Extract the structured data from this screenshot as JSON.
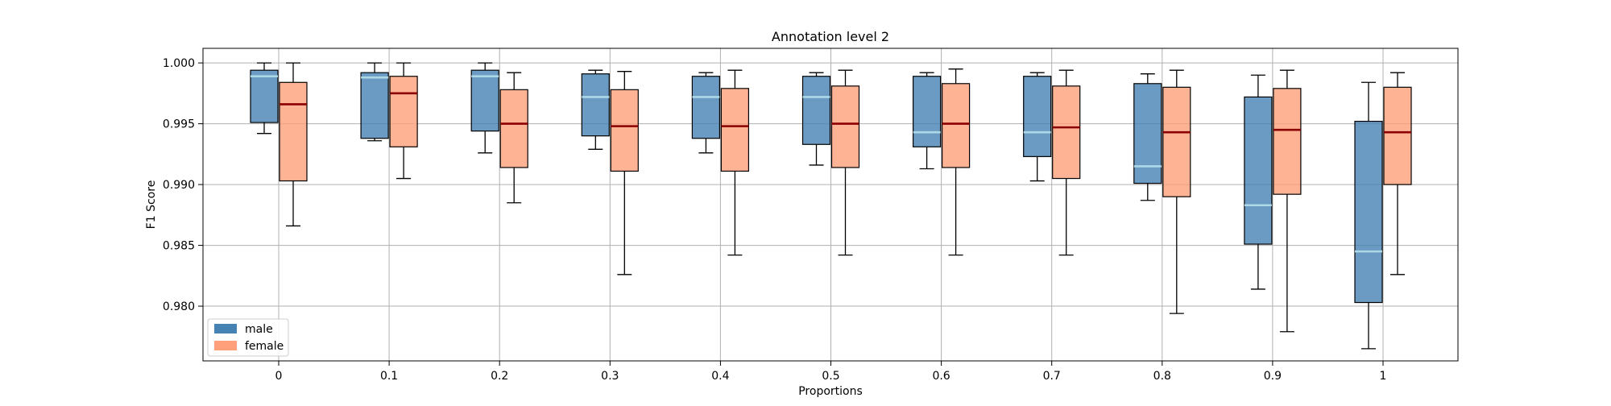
{
  "chart_data": {
    "type": "box",
    "title": "Annotation level 2",
    "xlabel": "Proportions",
    "ylabel": "F1 Score",
    "categories": [
      "0",
      "0.1",
      "0.2",
      "0.3",
      "0.4",
      "0.5",
      "0.6",
      "0.7",
      "0.8",
      "0.9",
      "1"
    ],
    "ylim": [
      0.9755,
      1.0012
    ],
    "yticks": [
      0.98,
      0.985,
      0.99,
      0.995,
      1.0
    ],
    "ytick_labels": [
      "0.980",
      "0.985",
      "0.990",
      "0.995",
      "1.000"
    ],
    "grid": true,
    "legend_position": "lower-left",
    "series": [
      {
        "name": "male",
        "color": "#4682b4",
        "median_color": "#add8e6",
        "boxes": [
          {
            "whisker_low": 0.9942,
            "q1": 0.9951,
            "median": 0.9989,
            "q3": 0.9994,
            "whisker_high": 1.0
          },
          {
            "whisker_low": 0.9936,
            "q1": 0.9938,
            "median": 0.9988,
            "q3": 0.9992,
            "whisker_high": 1.0
          },
          {
            "whisker_low": 0.9926,
            "q1": 0.9944,
            "median": 0.9989,
            "q3": 0.9994,
            "whisker_high": 1.0
          },
          {
            "whisker_low": 0.9929,
            "q1": 0.994,
            "median": 0.9972,
            "q3": 0.9991,
            "whisker_high": 0.9994
          },
          {
            "whisker_low": 0.9926,
            "q1": 0.9938,
            "median": 0.9972,
            "q3": 0.9989,
            "whisker_high": 0.9992
          },
          {
            "whisker_low": 0.9916,
            "q1": 0.9933,
            "median": 0.9972,
            "q3": 0.9989,
            "whisker_high": 0.9992
          },
          {
            "whisker_low": 0.9913,
            "q1": 0.9931,
            "median": 0.9943,
            "q3": 0.9989,
            "whisker_high": 0.9992
          },
          {
            "whisker_low": 0.9903,
            "q1": 0.9923,
            "median": 0.9943,
            "q3": 0.9989,
            "whisker_high": 0.9992
          },
          {
            "whisker_low": 0.9887,
            "q1": 0.9901,
            "median": 0.9915,
            "q3": 0.9983,
            "whisker_high": 0.9991
          },
          {
            "whisker_low": 0.9814,
            "q1": 0.9851,
            "median": 0.9883,
            "q3": 0.9972,
            "whisker_high": 0.999
          },
          {
            "whisker_low": 0.9765,
            "q1": 0.9803,
            "median": 0.9845,
            "q3": 0.9952,
            "whisker_high": 0.9984
          }
        ]
      },
      {
        "name": "female",
        "color": "#ffa07a",
        "median_color": "#8b0000",
        "boxes": [
          {
            "whisker_low": 0.9866,
            "q1": 0.9903,
            "median": 0.9966,
            "q3": 0.9984,
            "whisker_high": 1.0
          },
          {
            "whisker_low": 0.9905,
            "q1": 0.9931,
            "median": 0.9975,
            "q3": 0.9989,
            "whisker_high": 1.0
          },
          {
            "whisker_low": 0.9885,
            "q1": 0.9914,
            "median": 0.995,
            "q3": 0.9978,
            "whisker_high": 0.9992
          },
          {
            "whisker_low": 0.9826,
            "q1": 0.9911,
            "median": 0.9948,
            "q3": 0.9978,
            "whisker_high": 0.9993
          },
          {
            "whisker_low": 0.9842,
            "q1": 0.9911,
            "median": 0.9948,
            "q3": 0.9979,
            "whisker_high": 0.9994
          },
          {
            "whisker_low": 0.9842,
            "q1": 0.9914,
            "median": 0.995,
            "q3": 0.9981,
            "whisker_high": 0.9994
          },
          {
            "whisker_low": 0.9842,
            "q1": 0.9914,
            "median": 0.995,
            "q3": 0.9983,
            "whisker_high": 0.9995
          },
          {
            "whisker_low": 0.9842,
            "q1": 0.9905,
            "median": 0.9947,
            "q3": 0.9981,
            "whisker_high": 0.9994
          },
          {
            "whisker_low": 0.9794,
            "q1": 0.989,
            "median": 0.9943,
            "q3": 0.998,
            "whisker_high": 0.9994
          },
          {
            "whisker_low": 0.9779,
            "q1": 0.9892,
            "median": 0.9945,
            "q3": 0.9979,
            "whisker_high": 0.9994
          },
          {
            "whisker_low": 0.9826,
            "q1": 0.99,
            "median": 0.9943,
            "q3": 0.998,
            "whisker_high": 0.9992
          }
        ]
      }
    ]
  }
}
